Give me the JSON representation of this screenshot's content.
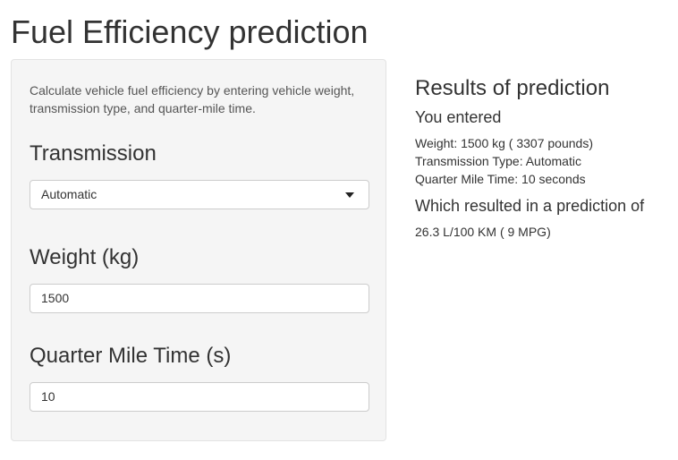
{
  "page": {
    "title": "Fuel Efficiency prediction"
  },
  "sidebar": {
    "description": "Calculate vehicle fuel efficiency by entering vehicle weight, transmission type, and quarter-mile time.",
    "transmission": {
      "label": "Transmission",
      "selected": "Automatic",
      "icon": "caret-down-icon"
    },
    "weight": {
      "label": "Weight (kg)",
      "value": "1500"
    },
    "quarter_mile": {
      "label": "Quarter Mile Time (s)",
      "value": "10"
    }
  },
  "results": {
    "heading": "Results of prediction",
    "entered_heading": "You entered",
    "weight_line": "Weight: 1500 kg ( 3307 pounds)",
    "transmission_line": "Transmission Type: Automatic",
    "quarter_mile_line": "Quarter Mile Time: 10 seconds",
    "prediction_heading": "Which resulted in a prediction of",
    "prediction_value": "26.3 L/100 KM ( 9 MPG)"
  },
  "colors": {
    "panel_background": "#f5f5f5",
    "panel_border": "#e3e3e3",
    "text": "#333333"
  }
}
